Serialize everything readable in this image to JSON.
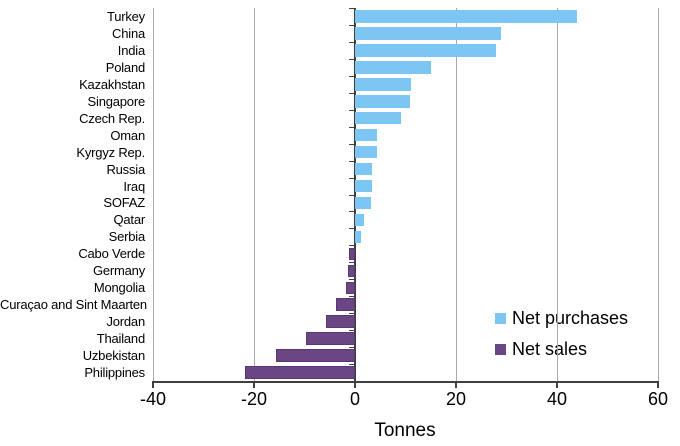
{
  "axis": {
    "xlabel": "Tonnes",
    "xtick_labels": [
      "-40",
      "-20",
      "0",
      "20",
      "40",
      "60"
    ]
  },
  "legend": {
    "items": [
      {
        "label": "Net purchases",
        "color": "#7dc5f3"
      },
      {
        "label": "Net sales",
        "color": "#6a4684"
      }
    ]
  },
  "chart_data": {
    "type": "bar",
    "orientation": "horizontal",
    "title": "",
    "xlabel": "Tonnes",
    "ylabel": "",
    "xlim": [
      -40,
      60
    ],
    "xticks": [
      -40,
      -20,
      0,
      20,
      40,
      60
    ],
    "grid": "vertical-gridlines-on",
    "legend_position": "middle-right",
    "series": [
      {
        "name": "Net purchases",
        "color": "#7dc5f3",
        "rule": "values >= 0"
      },
      {
        "name": "Net sales",
        "color": "#6a4684",
        "rule": "values < 0"
      }
    ],
    "categories": [
      "Turkey",
      "China",
      "India",
      "Poland",
      "Kazakhstan",
      "Singapore",
      "Czech Rep.",
      "Oman",
      "Kyrgyz Rep.",
      "Russia",
      "Iraq",
      "SOFAZ",
      "Qatar",
      "Serbia",
      "Cabo Verde",
      "Germany",
      "Mongolia",
      "Curaçao and Sint Maarten",
      "Jordan",
      "Thailand",
      "Uzbekistan",
      "Philippines"
    ],
    "values": [
      44,
      29,
      28,
      15,
      11,
      10.8,
      9.1,
      4.4,
      4.3,
      3.4,
      3.3,
      3.1,
      1.8,
      1.2,
      -1.2,
      -1.4,
      -1.7,
      -3.8,
      -5.8,
      -9.8,
      -15.7,
      -21.8
    ]
  }
}
